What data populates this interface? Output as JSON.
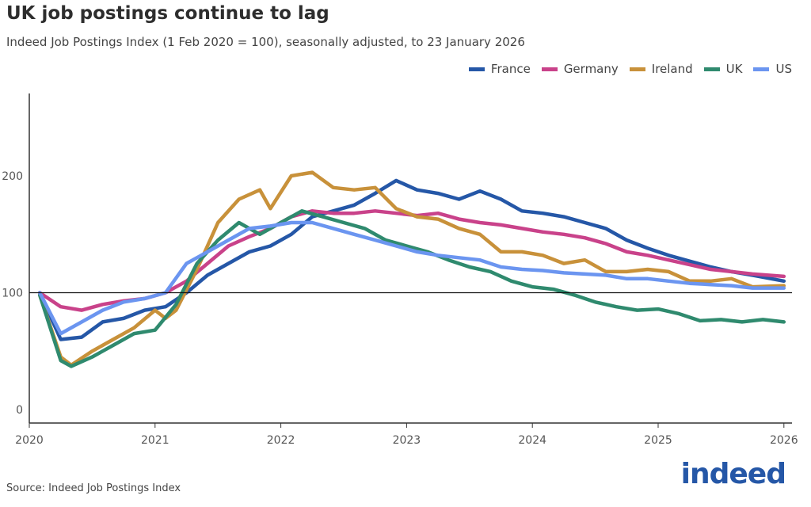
{
  "chart_data": {
    "type": "line",
    "title": "UK job postings continue to lag",
    "subtitle": "Indeed Job Postings Index (1 Feb 2020 = 100), seasonally adjusted, to 23 January 2026",
    "source": "Source: Indeed Job Postings Index",
    "logo": "indeed",
    "xlim": [
      "2020-01",
      "2026-01"
    ],
    "ylim": [
      0,
      270
    ],
    "x_ticks": [
      "2020",
      "2021",
      "2022",
      "2023",
      "2024",
      "2025",
      "2026"
    ],
    "y_ticks": [
      0,
      100,
      200
    ],
    "reference_line": 100,
    "grid": false,
    "legend_position": "top-right",
    "series": [
      {
        "name": "France",
        "color": "#2557a7",
        "points": [
          [
            "2020-02",
            100
          ],
          [
            "2020-04",
            60
          ],
          [
            "2020-06",
            62
          ],
          [
            "2020-08",
            75
          ],
          [
            "2020-10",
            78
          ],
          [
            "2020-12",
            85
          ],
          [
            "2021-02",
            88
          ],
          [
            "2021-04",
            100
          ],
          [
            "2021-06",
            115
          ],
          [
            "2021-08",
            125
          ],
          [
            "2021-10",
            135
          ],
          [
            "2021-12",
            140
          ],
          [
            "2022-02",
            150
          ],
          [
            "2022-04",
            165
          ],
          [
            "2022-06",
            170
          ],
          [
            "2022-08",
            175
          ],
          [
            "2022-10",
            185
          ],
          [
            "2022-12",
            196
          ],
          [
            "2023-02",
            188
          ],
          [
            "2023-04",
            185
          ],
          [
            "2023-06",
            180
          ],
          [
            "2023-08",
            187
          ],
          [
            "2023-10",
            180
          ],
          [
            "2023-12",
            170
          ],
          [
            "2024-02",
            168
          ],
          [
            "2024-04",
            165
          ],
          [
            "2024-06",
            160
          ],
          [
            "2024-08",
            155
          ],
          [
            "2024-10",
            145
          ],
          [
            "2024-12",
            138
          ],
          [
            "2025-02",
            132
          ],
          [
            "2025-04",
            127
          ],
          [
            "2025-06",
            122
          ],
          [
            "2025-08",
            118
          ],
          [
            "2025-10",
            115
          ],
          [
            "2026-01",
            110
          ]
        ]
      },
      {
        "name": "Germany",
        "color": "#c9428a",
        "points": [
          [
            "2020-02",
            100
          ],
          [
            "2020-04",
            88
          ],
          [
            "2020-06",
            85
          ],
          [
            "2020-08",
            90
          ],
          [
            "2020-10",
            93
          ],
          [
            "2020-12",
            95
          ],
          [
            "2021-02",
            100
          ],
          [
            "2021-04",
            110
          ],
          [
            "2021-06",
            125
          ],
          [
            "2021-08",
            140
          ],
          [
            "2021-10",
            148
          ],
          [
            "2021-12",
            155
          ],
          [
            "2022-02",
            165
          ],
          [
            "2022-04",
            170
          ],
          [
            "2022-06",
            168
          ],
          [
            "2022-08",
            168
          ],
          [
            "2022-10",
            170
          ],
          [
            "2022-12",
            168
          ],
          [
            "2023-02",
            166
          ],
          [
            "2023-04",
            168
          ],
          [
            "2023-06",
            163
          ],
          [
            "2023-08",
            160
          ],
          [
            "2023-10",
            158
          ],
          [
            "2023-12",
            155
          ],
          [
            "2024-02",
            152
          ],
          [
            "2024-04",
            150
          ],
          [
            "2024-06",
            147
          ],
          [
            "2024-08",
            142
          ],
          [
            "2024-10",
            135
          ],
          [
            "2024-12",
            132
          ],
          [
            "2025-02",
            128
          ],
          [
            "2025-04",
            124
          ],
          [
            "2025-06",
            120
          ],
          [
            "2025-08",
            118
          ],
          [
            "2025-10",
            116
          ],
          [
            "2026-01",
            114
          ]
        ]
      },
      {
        "name": "Ireland",
        "color": "#c8913a",
        "points": [
          [
            "2020-02",
            98
          ],
          [
            "2020-04",
            45
          ],
          [
            "2020-05",
            38
          ],
          [
            "2020-07",
            50
          ],
          [
            "2020-09",
            60
          ],
          [
            "2020-11",
            70
          ],
          [
            "2021-01",
            85
          ],
          [
            "2021-02",
            78
          ],
          [
            "2021-03",
            85
          ],
          [
            "2021-05",
            120
          ],
          [
            "2021-07",
            160
          ],
          [
            "2021-09",
            180
          ],
          [
            "2021-11",
            188
          ],
          [
            "2021-12",
            172
          ],
          [
            "2022-02",
            200
          ],
          [
            "2022-04",
            203
          ],
          [
            "2022-06",
            190
          ],
          [
            "2022-08",
            188
          ],
          [
            "2022-10",
            190
          ],
          [
            "2022-12",
            172
          ],
          [
            "2023-02",
            165
          ],
          [
            "2023-04",
            163
          ],
          [
            "2023-06",
            155
          ],
          [
            "2023-08",
            150
          ],
          [
            "2023-10",
            135
          ],
          [
            "2023-12",
            135
          ],
          [
            "2024-02",
            132
          ],
          [
            "2024-04",
            125
          ],
          [
            "2024-06",
            128
          ],
          [
            "2024-08",
            118
          ],
          [
            "2024-10",
            118
          ],
          [
            "2024-12",
            120
          ],
          [
            "2025-02",
            118
          ],
          [
            "2025-04",
            110
          ],
          [
            "2025-06",
            110
          ],
          [
            "2025-08",
            112
          ],
          [
            "2025-10",
            105
          ],
          [
            "2026-01",
            106
          ]
        ]
      },
      {
        "name": "UK",
        "color": "#2f8a6e",
        "points": [
          [
            "2020-02",
            98
          ],
          [
            "2020-04",
            42
          ],
          [
            "2020-05",
            37
          ],
          [
            "2020-07",
            45
          ],
          [
            "2020-09",
            55
          ],
          [
            "2020-11",
            65
          ],
          [
            "2021-01",
            68
          ],
          [
            "2021-03",
            90
          ],
          [
            "2021-05",
            125
          ],
          [
            "2021-07",
            145
          ],
          [
            "2021-09",
            160
          ],
          [
            "2021-11",
            150
          ],
          [
            "2022-01",
            160
          ],
          [
            "2022-03",
            170
          ],
          [
            "2022-05",
            165
          ],
          [
            "2022-07",
            160
          ],
          [
            "2022-09",
            155
          ],
          [
            "2022-11",
            145
          ],
          [
            "2023-01",
            140
          ],
          [
            "2023-03",
            135
          ],
          [
            "2023-05",
            128
          ],
          [
            "2023-07",
            122
          ],
          [
            "2023-09",
            118
          ],
          [
            "2023-11",
            110
          ],
          [
            "2024-01",
            105
          ],
          [
            "2024-03",
            103
          ],
          [
            "2024-05",
            98
          ],
          [
            "2024-07",
            92
          ],
          [
            "2024-09",
            88
          ],
          [
            "2024-11",
            85
          ],
          [
            "2025-01",
            86
          ],
          [
            "2025-03",
            82
          ],
          [
            "2025-05",
            76
          ],
          [
            "2025-07",
            77
          ],
          [
            "2025-09",
            75
          ],
          [
            "2025-11",
            77
          ],
          [
            "2026-01",
            75
          ]
        ]
      },
      {
        "name": "US",
        "color": "#6b95f0",
        "points": [
          [
            "2020-02",
            100
          ],
          [
            "2020-04",
            65
          ],
          [
            "2020-06",
            75
          ],
          [
            "2020-08",
            85
          ],
          [
            "2020-10",
            92
          ],
          [
            "2020-12",
            95
          ],
          [
            "2021-02",
            100
          ],
          [
            "2021-04",
            125
          ],
          [
            "2021-06",
            135
          ],
          [
            "2021-08",
            145
          ],
          [
            "2021-10",
            155
          ],
          [
            "2021-12",
            157
          ],
          [
            "2022-02",
            160
          ],
          [
            "2022-04",
            160
          ],
          [
            "2022-06",
            155
          ],
          [
            "2022-08",
            150
          ],
          [
            "2022-10",
            145
          ],
          [
            "2022-12",
            140
          ],
          [
            "2023-02",
            135
          ],
          [
            "2023-04",
            132
          ],
          [
            "2023-06",
            130
          ],
          [
            "2023-08",
            128
          ],
          [
            "2023-10",
            122
          ],
          [
            "2023-12",
            120
          ],
          [
            "2024-02",
            119
          ],
          [
            "2024-04",
            117
          ],
          [
            "2024-06",
            116
          ],
          [
            "2024-08",
            115
          ],
          [
            "2024-10",
            112
          ],
          [
            "2024-12",
            112
          ],
          [
            "2025-02",
            110
          ],
          [
            "2025-04",
            108
          ],
          [
            "2025-06",
            107
          ],
          [
            "2025-08",
            106
          ],
          [
            "2025-10",
            104
          ],
          [
            "2026-01",
            104
          ]
        ]
      }
    ]
  }
}
